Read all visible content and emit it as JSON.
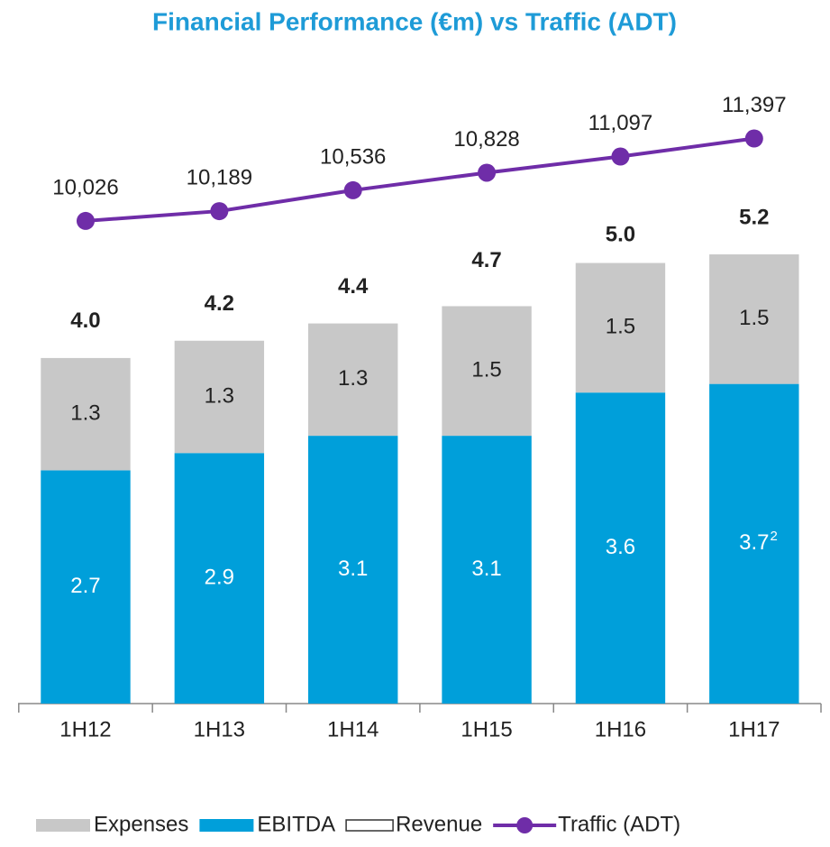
{
  "chart_data": {
    "type": "stacked_bar_line",
    "title": "Financial Performance (€m) vs Traffic (ADT)",
    "categories": [
      "1H12",
      "1H13",
      "1H14",
      "1H15",
      "1H16",
      "1H17"
    ],
    "ylim": [
      0,
      7.1
    ],
    "y2lim": [
      2000,
      12200
    ],
    "series": [
      {
        "name": "Expenses",
        "color": "#c8c8c8",
        "role": "stack",
        "stack_order": 1,
        "values": [
          1.3,
          1.3,
          1.3,
          1.5,
          1.5,
          1.5
        ]
      },
      {
        "name": "EBITDA",
        "color": "#009fda",
        "role": "stack",
        "stack_order": 0,
        "values": [
          2.7,
          2.9,
          3.1,
          3.1,
          3.6,
          3.7
        ],
        "footnotes": [
          null,
          null,
          null,
          null,
          null,
          "2"
        ]
      },
      {
        "name": "Revenue",
        "color": "#333333",
        "role": "total",
        "values": [
          4.0,
          4.2,
          4.4,
          4.7,
          5.0,
          5.2
        ],
        "value_labels": [
          "4.0",
          "4.2",
          "4.4",
          "4.7",
          "5.0",
          "5.2"
        ]
      },
      {
        "name": "Traffic (ADT)",
        "color": "#6f2da8",
        "role": "line",
        "axis": "y2",
        "values": [
          10026,
          10189,
          10536,
          10828,
          11097,
          11397
        ],
        "value_labels": [
          "10,026",
          "10,189",
          "10,536",
          "10,828",
          "11,097",
          "11,397"
        ]
      }
    ]
  }
}
